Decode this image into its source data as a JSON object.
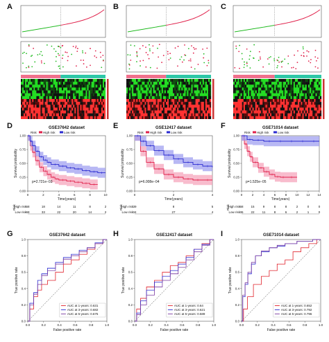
{
  "panel_letters": [
    "A",
    "B",
    "C",
    "D",
    "E",
    "F",
    "G",
    "H",
    "I"
  ],
  "colors": {
    "high": "#e0204a",
    "low": "#2a2ad0",
    "green": "#22bb22",
    "ribbon_high": "#f5a0b8",
    "ribbon_low": "#9a9af0",
    "hm_high": "#ff3030",
    "hm_low": "#22dd22",
    "hm_teal": "#2ec7a7",
    "hm_pink": "#f0708c",
    "roc1": "#e0202a",
    "roc3": "#2a2ad0",
    "roc5": "#7a3aa0"
  },
  "chart_data": [
    {
      "panel": "D",
      "type": "line",
      "title": "GSE37642 dataset",
      "xlabel": "Time(years)",
      "ylabel": "Survival probability",
      "xlim": [
        0,
        10
      ],
      "ylim": [
        0,
        1
      ],
      "xticks": [
        0,
        2,
        4,
        6,
        8,
        10
      ],
      "yticks": [
        "0.00",
        "0.25",
        "0.50",
        "0.75",
        "1.00"
      ],
      "legend": {
        "title": "Risk",
        "items": [
          "High risk",
          "Low risk"
        ]
      },
      "pvalue": "p=2.721e−03",
      "series": [
        {
          "name": "High risk",
          "x": [
            0,
            0.3,
            0.6,
            1,
            1.5,
            2,
            2.5,
            3,
            3.5,
            4,
            5,
            6,
            7,
            8,
            9
          ],
          "y": [
            1,
            0.82,
            0.7,
            0.55,
            0.43,
            0.36,
            0.3,
            0.25,
            0.22,
            0.2,
            0.18,
            0.16,
            0.14,
            0.12,
            0.12
          ]
        },
        {
          "name": "Low risk",
          "x": [
            0,
            0.3,
            0.6,
            1,
            1.5,
            2,
            2.5,
            3,
            4,
            5,
            6,
            7,
            8,
            9,
            10
          ],
          "y": [
            1,
            0.9,
            0.82,
            0.72,
            0.62,
            0.56,
            0.52,
            0.48,
            0.45,
            0.42,
            0.4,
            0.37,
            0.35,
            0.33,
            0.33
          ]
        }
      ],
      "risk_table": {
        "rows": [
          "High risk",
          "Low risk"
        ],
        "values": [
          [
            "68",
            "18",
            "14",
            "11",
            "8",
            "2"
          ],
          [
            "68",
            "33",
            "22",
            "20",
            "14",
            "2"
          ]
        ]
      }
    },
    {
      "panel": "E",
      "type": "line",
      "title": "GSE12417 dataset",
      "xlabel": "Time(years)",
      "ylabel": "Survival probability",
      "xlim": [
        0,
        4
      ],
      "ylim": [
        0,
        1
      ],
      "xticks": [
        0,
        2,
        4
      ],
      "yticks": [
        "0.00",
        "0.25",
        "0.50",
        "0.75",
        "1.00"
      ],
      "legend": {
        "title": "Risk",
        "items": [
          "High risk",
          "Low risk"
        ]
      },
      "pvalue": "p=6.008e−04",
      "series": [
        {
          "name": "High risk",
          "x": [
            0,
            0.3,
            0.6,
            1,
            1.5,
            2,
            2.5,
            3,
            3.5,
            4
          ],
          "y": [
            1,
            0.72,
            0.52,
            0.4,
            0.3,
            0.25,
            0.22,
            0.2,
            0.2,
            0.2
          ]
        },
        {
          "name": "Low risk",
          "x": [
            0,
            0.3,
            0.6,
            1,
            1.5,
            2,
            2.5,
            3,
            3.5,
            4
          ],
          "y": [
            1,
            0.9,
            0.82,
            0.73,
            0.65,
            0.58,
            0.52,
            0.48,
            0.45,
            0.43
          ]
        }
      ],
      "risk_table": {
        "rows": [
          "High risk",
          "Low risk"
        ],
        "values": [
          [
            "39",
            "8",
            "5"
          ],
          [
            "34",
            "27",
            "4"
          ]
        ]
      }
    },
    {
      "panel": "F",
      "type": "line",
      "title": "GSE71014 dataset",
      "xlabel": "Time(years)",
      "ylabel": "Survival probability",
      "xlim": [
        0,
        14
      ],
      "ylim": [
        0,
        1
      ],
      "xticks": [
        0,
        2,
        4,
        6,
        8,
        10,
        12,
        14
      ],
      "yticks": [
        "0.00",
        "0.25",
        "0.50",
        "0.75",
        "1.00"
      ],
      "legend": {
        "title": "Risk",
        "items": [
          "High risk",
          "Low risk"
        ]
      },
      "pvalue": "p=1.525e−05",
      "series": [
        {
          "name": "High risk",
          "x": [
            0,
            0.5,
            1,
            1.5,
            2,
            3,
            4,
            5,
            6,
            7,
            8,
            10
          ],
          "y": [
            1,
            0.85,
            0.72,
            0.62,
            0.52,
            0.42,
            0.35,
            0.3,
            0.26,
            0.25,
            0.25,
            0.25
          ]
        },
        {
          "name": "Low risk",
          "x": [
            0,
            1,
            2,
            4,
            6,
            8,
            10,
            12,
            14
          ],
          "y": [
            1,
            0.93,
            0.92,
            0.9,
            0.9,
            0.9,
            0.9,
            0.9,
            0.9
          ]
        }
      ],
      "risk_table": {
        "rows": [
          "High risk",
          "Low risk"
        ],
        "values": [
          [
            "68",
            "15",
            "9",
            "8",
            "8",
            "2",
            "0",
            "0"
          ],
          [
            "36",
            "22",
            "11",
            "8",
            "6",
            "2",
            "1",
            "0"
          ]
        ]
      }
    },
    {
      "panel": "G",
      "type": "line",
      "title": "GSE37642 dataset",
      "xlabel": "False positive rate",
      "ylabel": "True positive rate",
      "xticks": [
        "0.0",
        "0.2",
        "0.4",
        "0.6",
        "0.8",
        "1.0"
      ],
      "yticks": [
        "0.0",
        "0.2",
        "0.4",
        "0.6",
        "0.8",
        "1.0"
      ],
      "legend_items": [
        "AUC at 1-years: 0.631",
        "AUC at 3-years: 0.682",
        "AUC at 5-years: 0.675"
      ],
      "series": [
        {
          "name": "AUC at 1-years: 0.631",
          "x": [
            0,
            0.05,
            0.1,
            0.15,
            0.2,
            0.3,
            0.4,
            0.5,
            0.6,
            0.7,
            0.8,
            0.9,
            1
          ],
          "y": [
            0,
            0.15,
            0.3,
            0.38,
            0.45,
            0.5,
            0.6,
            0.7,
            0.75,
            0.82,
            0.88,
            0.95,
            1
          ]
        },
        {
          "name": "AUC at 3-years: 0.682",
          "x": [
            0,
            0.05,
            0.1,
            0.15,
            0.2,
            0.3,
            0.4,
            0.5,
            0.6,
            0.7,
            0.8,
            0.9,
            1
          ],
          "y": [
            0,
            0.22,
            0.35,
            0.5,
            0.58,
            0.65,
            0.72,
            0.78,
            0.82,
            0.87,
            0.9,
            0.96,
            1
          ]
        },
        {
          "name": "AUC at 5-years: 0.675",
          "x": [
            0,
            0.05,
            0.1,
            0.15,
            0.2,
            0.3,
            0.4,
            0.5,
            0.6,
            0.7,
            0.8,
            0.9,
            1
          ],
          "y": [
            0,
            0.2,
            0.33,
            0.45,
            0.56,
            0.62,
            0.7,
            0.76,
            0.8,
            0.85,
            0.9,
            0.95,
            1
          ]
        }
      ]
    },
    {
      "panel": "H",
      "type": "line",
      "title": "GSE12417 dataset",
      "xlabel": "False positive rate",
      "ylabel": "True positive rate",
      "xticks": [
        "0.0",
        "0.2",
        "0.4",
        "0.6",
        "0.8",
        "1.0"
      ],
      "yticks": [
        "0.0",
        "0.2",
        "0.4",
        "0.6",
        "0.8",
        "1.0"
      ],
      "legend_items": [
        "AUC at 1-years: 0.64",
        "AUC at 3-years: 0.621",
        "AUC at 5-years: 0.589"
      ],
      "series": [
        {
          "name": "AUC at 1-years: 0.64",
          "x": [
            0,
            0.05,
            0.1,
            0.2,
            0.3,
            0.4,
            0.5,
            0.6,
            0.7,
            0.8,
            0.9,
            1
          ],
          "y": [
            0,
            0.15,
            0.28,
            0.42,
            0.5,
            0.6,
            0.68,
            0.72,
            0.8,
            0.88,
            0.95,
            1
          ]
        },
        {
          "name": "AUC at 3-years: 0.621",
          "x": [
            0,
            0.05,
            0.1,
            0.2,
            0.3,
            0.4,
            0.5,
            0.6,
            0.7,
            0.8,
            0.9,
            1
          ],
          "y": [
            0,
            0.1,
            0.25,
            0.38,
            0.48,
            0.55,
            0.62,
            0.7,
            0.78,
            0.88,
            0.94,
            1
          ]
        },
        {
          "name": "AUC at 5-years: 0.589",
          "x": [
            0,
            0.05,
            0.1,
            0.2,
            0.3,
            0.4,
            0.5,
            0.6,
            0.7,
            0.8,
            0.9,
            1
          ],
          "y": [
            0,
            0.08,
            0.2,
            0.32,
            0.42,
            0.5,
            0.58,
            0.66,
            0.75,
            0.85,
            0.93,
            1
          ]
        }
      ]
    },
    {
      "panel": "I",
      "type": "line",
      "title": "GSE71014 dataset",
      "xlabel": "False positive rate",
      "ylabel": "True positive rate",
      "xticks": [
        "0.0",
        "0.2",
        "0.4",
        "0.6",
        "0.8",
        "1.0"
      ],
      "yticks": [
        "0.0",
        "0.2",
        "0.4",
        "0.6",
        "0.8",
        "1.0"
      ],
      "legend_items": [
        "AUC at 1-years: 0.652",
        "AUC at 3-years: 0.792",
        "AUC at 5-years: 0.796"
      ],
      "series": [
        {
          "name": "AUC at 1-years: 0.652",
          "x": [
            0,
            0.05,
            0.1,
            0.2,
            0.3,
            0.4,
            0.5,
            0.6,
            0.7,
            0.8,
            0.9,
            1
          ],
          "y": [
            0,
            0.15,
            0.3,
            0.45,
            0.55,
            0.62,
            0.7,
            0.75,
            0.85,
            0.9,
            0.95,
            1
          ]
        },
        {
          "name": "AUC at 3-years: 0.792",
          "x": [
            0,
            0.03,
            0.06,
            0.1,
            0.15,
            0.2,
            0.3,
            0.4,
            0.5,
            0.6,
            0.8,
            1
          ],
          "y": [
            0,
            0.3,
            0.45,
            0.58,
            0.7,
            0.8,
            0.85,
            0.9,
            0.92,
            0.95,
            0.98,
            1
          ]
        },
        {
          "name": "AUC at 5-years: 0.796",
          "x": [
            0,
            0.03,
            0.06,
            0.1,
            0.15,
            0.2,
            0.3,
            0.4,
            0.5,
            0.6,
            0.8,
            1
          ],
          "y": [
            0,
            0.32,
            0.47,
            0.6,
            0.72,
            0.8,
            0.86,
            0.9,
            0.93,
            0.95,
            0.98,
            1
          ]
        }
      ]
    }
  ]
}
